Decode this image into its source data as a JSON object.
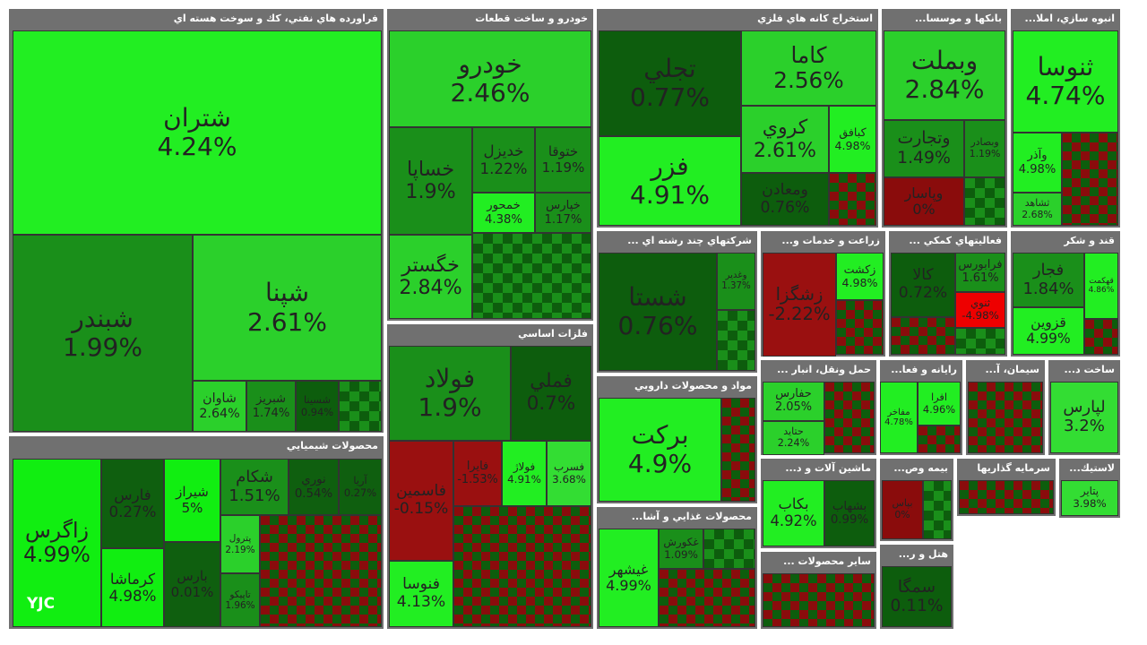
{
  "chart_data": {
    "type": "treemap",
    "watermark": "YJC",
    "sectors": [
      {
        "title": "فراورده هاي نفتي، كك و سوخت هسته اي",
        "labels": [
          "شتران",
          "شبندر",
          "شپنا",
          "شاوان",
          "شبريز",
          "شسينا"
        ],
        "values": [
          4.24,
          1.99,
          2.61,
          2.64,
          1.74,
          0.94
        ],
        "value_labels": [
          "4.24%",
          "1.99%",
          "2.61%",
          "2.64%",
          "1.74%",
          "0.94%"
        ],
        "colors": [
          "#22ee22",
          "#1a8f1a",
          "#2bd02b",
          "#2bd02b",
          "#1a8f1a",
          "#0d5d0d"
        ]
      },
      {
        "title": "محصولات شيميايي",
        "labels": [
          "زاگرس",
          "فارس",
          "كرماشا",
          "شيراز",
          "بارس",
          "شكام",
          "نوري",
          "آريا",
          "پترول",
          "تاپيكو"
        ],
        "values": [
          4.99,
          0.27,
          4.98,
          5,
          0.01,
          1.51,
          0.54,
          0.27,
          2.19,
          1.96
        ],
        "value_labels": [
          "4.99%",
          "0.27%",
          "4.98%",
          "5%",
          "0.01%",
          "1.51%",
          "0.54%",
          "0.27%",
          "2.19%",
          "1.96%"
        ],
        "colors": [
          "#11ee11",
          "#0f5f0f",
          "#11ee11",
          "#11ee11",
          "#0f5f0f",
          "#1a8f1a",
          "#0f5f0f",
          "#0f5f0f",
          "#2bd02b",
          "#1a8f1a"
        ]
      },
      {
        "title": "خودرو و ساخت قطعات",
        "labels": [
          "خودرو",
          "خساپا",
          "خديزل",
          "ختوقا",
          "خمحور",
          "خپارس",
          "خگستر"
        ],
        "values": [
          2.46,
          1.9,
          1.22,
          1.19,
          4.38,
          1.17,
          2.84
        ],
        "value_labels": [
          "2.46%",
          "1.9%",
          "1.22%",
          "1.19%",
          "4.38%",
          "1.17%",
          "2.84%"
        ],
        "colors": [
          "#2bd02b",
          "#1a8f1a",
          "#1a8f1a",
          "#1a8f1a",
          "#22ee22",
          "#1a8f1a",
          "#2bd02b"
        ]
      },
      {
        "title": "فلزات اساسي",
        "labels": [
          "فولاد",
          "فملي",
          "فاسمين",
          "فايرا",
          "فولاژ",
          "فسرب",
          "فنوسا"
        ],
        "values": [
          1.9,
          0.7,
          -0.15,
          -1.53,
          4.91,
          3.68,
          4.13
        ],
        "value_labels": [
          "1.9%",
          "0.7%",
          "-0.15%",
          "-1.53%",
          "4.91%",
          "3.68%",
          "4.13%"
        ],
        "colors": [
          "#1a8f1a",
          "#0d5d0d",
          "#9a1010",
          "#9a1010",
          "#22ee22",
          "#33dd33",
          "#22ee22"
        ]
      },
      {
        "title": "استخراج كانه هاي فلزي",
        "labels": [
          "تجلي",
          "فزر",
          "كاما",
          "كروي",
          "كبافق",
          "ومعادن"
        ],
        "values": [
          0.77,
          4.91,
          2.56,
          2.61,
          4.98,
          0.76
        ],
        "value_labels": [
          "0.77%",
          "4.91%",
          "2.56%",
          "2.61%",
          "4.98%",
          "0.76%"
        ],
        "colors": [
          "#0d5d0d",
          "#22ee22",
          "#2bd02b",
          "#2bd02b",
          "#22ee22",
          "#0d5d0d"
        ]
      },
      {
        "title": "بانكها و موسسا...",
        "labels": [
          "وبملت",
          "وتجارت",
          "وبصادر",
          "وپاسار"
        ],
        "values": [
          2.84,
          1.49,
          1.19,
          0
        ],
        "value_labels": [
          "2.84%",
          "1.49%",
          "1.19%",
          "0%"
        ],
        "colors": [
          "#2bd02b",
          "#1a8f1a",
          "#1a8f1a",
          "#8a0c0c"
        ]
      },
      {
        "title": "انبوه سازي، املا...",
        "labels": [
          "ثنوسا",
          "وآذر",
          "ثشاهد"
        ],
        "values": [
          4.74,
          4.98,
          2.68
        ],
        "value_labels": [
          "4.74%",
          "4.98%",
          "2.68%"
        ],
        "colors": [
          "#22ee22",
          "#22ee22",
          "#2bd02b"
        ]
      },
      {
        "title": "شركتهاي چند رشته اي ...",
        "labels": [
          "شستا",
          "وغدير"
        ],
        "values": [
          0.76,
          1.37
        ],
        "value_labels": [
          "0.76%",
          "1.37%"
        ],
        "colors": [
          "#0d5d0d",
          "#1a8f1a"
        ]
      },
      {
        "title": "زراعت و خدمات و...",
        "labels": [
          "زشگزا",
          "زكشت"
        ],
        "values": [
          -2.22,
          4.98
        ],
        "value_labels": [
          "-2.22%",
          "4.98%"
        ],
        "colors": [
          "#9a1010",
          "#22ee22"
        ]
      },
      {
        "title": "فعاليتهاي كمكي ...",
        "labels": [
          "كالا",
          "فرابورس",
          "ثنوي"
        ],
        "values": [
          0.72,
          1.61,
          -4.98
        ],
        "value_labels": [
          "0.72%",
          "1.61%",
          "-4.98%"
        ],
        "colors": [
          "#0d5d0d",
          "#1a8f1a",
          "#ee0000"
        ]
      },
      {
        "title": "قند و شكر",
        "labels": [
          "فجار",
          "قهكمت",
          "قزوين"
        ],
        "values": [
          1.84,
          4.86,
          4.99
        ],
        "value_labels": [
          "1.84%",
          "4.86%",
          "4.99%"
        ],
        "colors": [
          "#1a8f1a",
          "#22ee22",
          "#22ee22"
        ]
      },
      {
        "title": "مواد و محصولات دارويي",
        "labels": [
          "بركت"
        ],
        "values": [
          4.9
        ],
        "value_labels": [
          "4.9%"
        ],
        "colors": [
          "#22ee22"
        ]
      },
      {
        "title": "محصولات غذايي و آشا...",
        "labels": [
          "غيشهر",
          "غكورش"
        ],
        "values": [
          4.99,
          1.09
        ],
        "value_labels": [
          "4.99%",
          "1.09%"
        ],
        "colors": [
          "#22ee22",
          "#1a8f1a"
        ]
      },
      {
        "title": "حمل ونقل، انبار ...",
        "labels": [
          "حفارس",
          "حتايد"
        ],
        "values": [
          2.05,
          2.24
        ],
        "value_labels": [
          "2.05%",
          "2.24%"
        ],
        "colors": [
          "#2bd02b",
          "#2bd02b"
        ]
      },
      {
        "title": "رايانه و فعا...",
        "labels": [
          "افرا",
          "مفاخر"
        ],
        "values": [
          4.96,
          4.78
        ],
        "value_labels": [
          "4.96%",
          "4.78%"
        ],
        "colors": [
          "#22ee22",
          "#22ee22"
        ]
      },
      {
        "title": "سيمان، آ...",
        "labels": [],
        "values": [],
        "value_labels": [],
        "colors": []
      },
      {
        "title": "ساخت د...",
        "labels": [
          "لپارس"
        ],
        "values": [
          3.2
        ],
        "value_labels": [
          "3.2%"
        ],
        "colors": [
          "#33dd33"
        ]
      },
      {
        "title": "ماشين آلات و د...",
        "labels": [
          "بكاب",
          "بشهاب"
        ],
        "values": [
          4.92,
          0.99
        ],
        "value_labels": [
          "4.92%",
          "0.99%"
        ],
        "colors": [
          "#22ee22",
          "#0d5d0d"
        ]
      },
      {
        "title": "بيمه وص...",
        "labels": [
          "بپاس"
        ],
        "values": [
          0
        ],
        "value_labels": [
          "0%"
        ],
        "colors": [
          "#8a0c0c"
        ]
      },
      {
        "title": "سرمايه گذاريها",
        "labels": [],
        "values": [],
        "value_labels": [],
        "colors": []
      },
      {
        "title": "لاستيك...",
        "labels": [
          "پتاير"
        ],
        "values": [
          3.98
        ],
        "value_labels": [
          "3.98%"
        ],
        "colors": [
          "#33dd33"
        ]
      },
      {
        "title": "ساير محصولات ...",
        "labels": [],
        "values": [],
        "value_labels": [],
        "colors": []
      },
      {
        "title": "هتل و ر...",
        "labels": [
          "سمگا"
        ],
        "values": [
          0.11
        ],
        "value_labels": [
          "0.11%"
        ],
        "colors": [
          "#0d5d0d"
        ]
      }
    ]
  }
}
